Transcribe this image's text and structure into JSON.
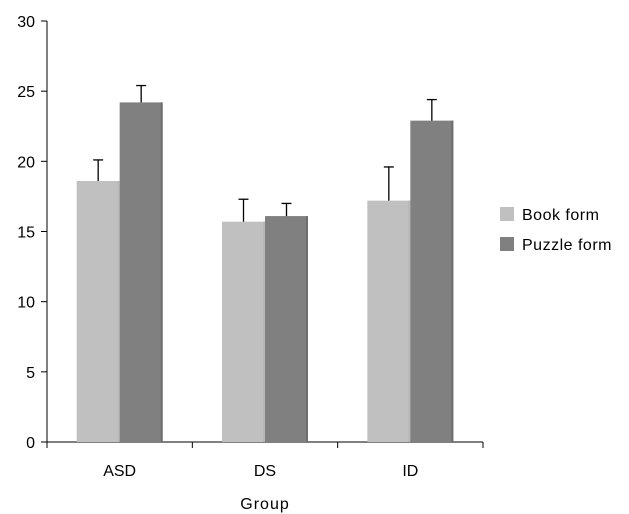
{
  "chart_data": {
    "type": "bar",
    "xlabel": "Group",
    "ylabel": "",
    "ylim": [
      0,
      30
    ],
    "yticks": [
      0,
      5,
      10,
      15,
      20,
      25,
      30
    ],
    "categories": [
      "ASD",
      "DS",
      "ID"
    ],
    "series": [
      {
        "name": "Book form",
        "color": "#c0c0c0",
        "values": [
          18.6,
          15.7,
          17.2
        ],
        "errors": [
          1.5,
          1.6,
          2.4
        ]
      },
      {
        "name": "Puzzle form",
        "color": "#808080",
        "values": [
          24.2,
          16.1,
          22.9
        ],
        "errors": [
          1.2,
          0.9,
          1.5
        ]
      }
    ],
    "legend_position": "right",
    "grid": false
  }
}
